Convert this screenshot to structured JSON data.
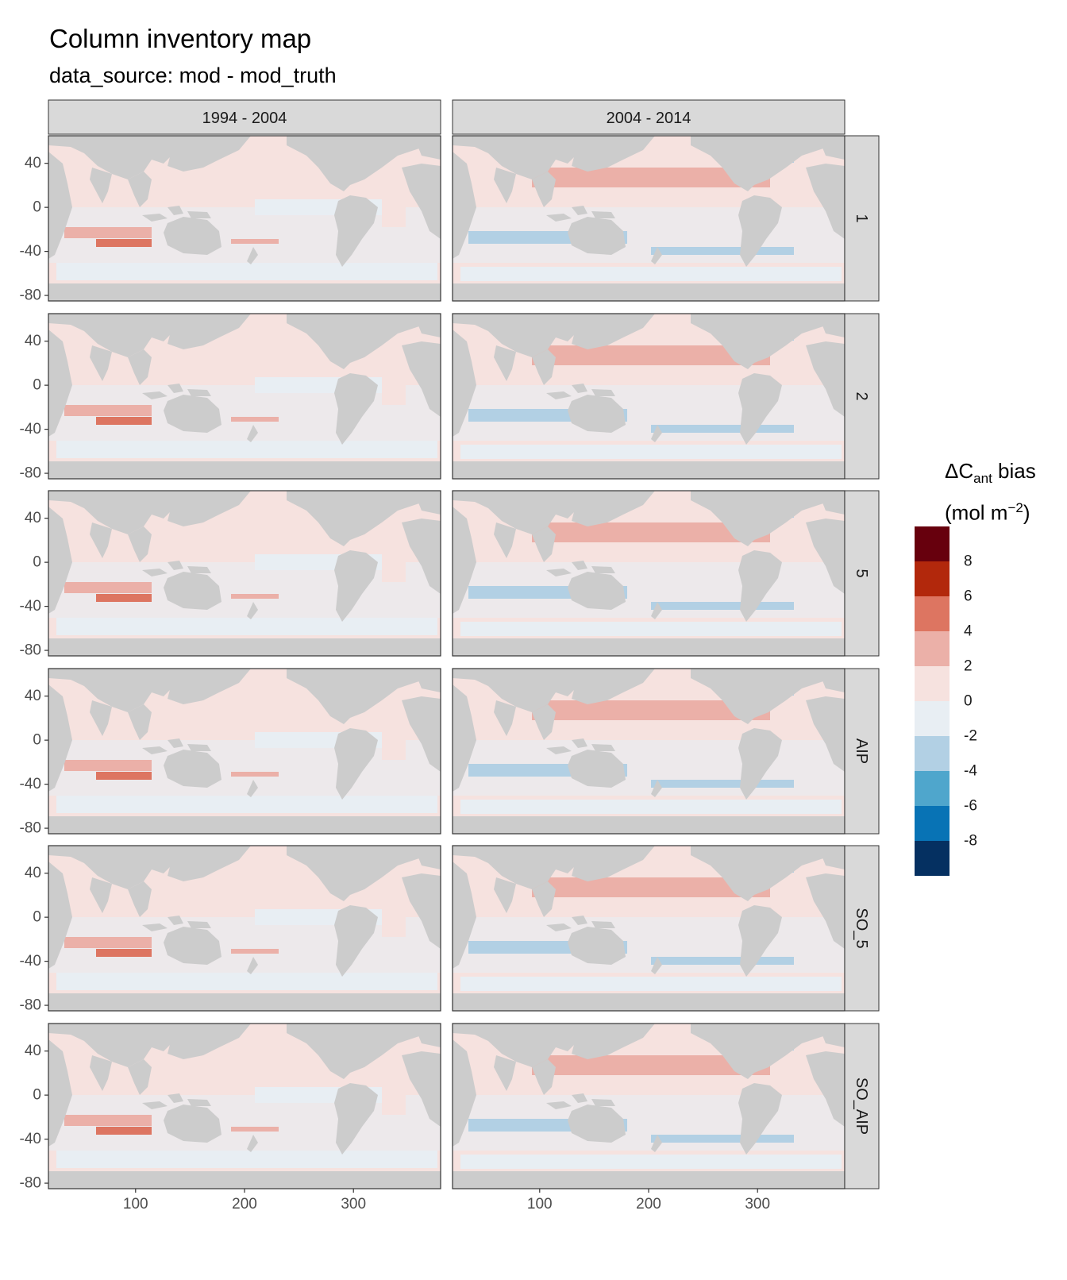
{
  "title": "Column inventory map",
  "subtitle": "data_source: mod - mod_truth",
  "legend": {
    "delta": "ΔC",
    "sub": "ant",
    "bias": " bias",
    "unit_open": "(mol m",
    "unit_sup": "−2",
    "unit_close": ")",
    "labels": [
      "8",
      "6",
      "4",
      "2",
      "0",
      "-2",
      "-4",
      "-6",
      "-8"
    ],
    "colors": [
      "#67000d",
      "#b2280c",
      "#dd7561",
      "#ebb0a8",
      "#f6e2df",
      "#e8eef3",
      "#b2d0e4",
      "#4fa6cc",
      "#0873b5",
      "#053061"
    ]
  },
  "chart_data": {
    "type": "heatmap",
    "title": "Column inventory map",
    "subtitle": "data_source: mod - mod_truth",
    "columns": [
      "1994 - 2004",
      "2004 - 2014"
    ],
    "rows": [
      "1",
      "2",
      "5",
      "AIP",
      "SO_5",
      "SO_AIP"
    ],
    "x_ticks": [
      "100",
      "200",
      "300"
    ],
    "y_ticks": [
      "40",
      "0",
      "-40",
      "-80"
    ],
    "xlim": [
      20,
      380
    ],
    "ylim": [
      -85,
      65
    ],
    "color_scale_breaks": [
      -10,
      -8,
      -6,
      -4,
      -2,
      0,
      2,
      4,
      6,
      8,
      10
    ],
    "legend_placement": "right"
  }
}
